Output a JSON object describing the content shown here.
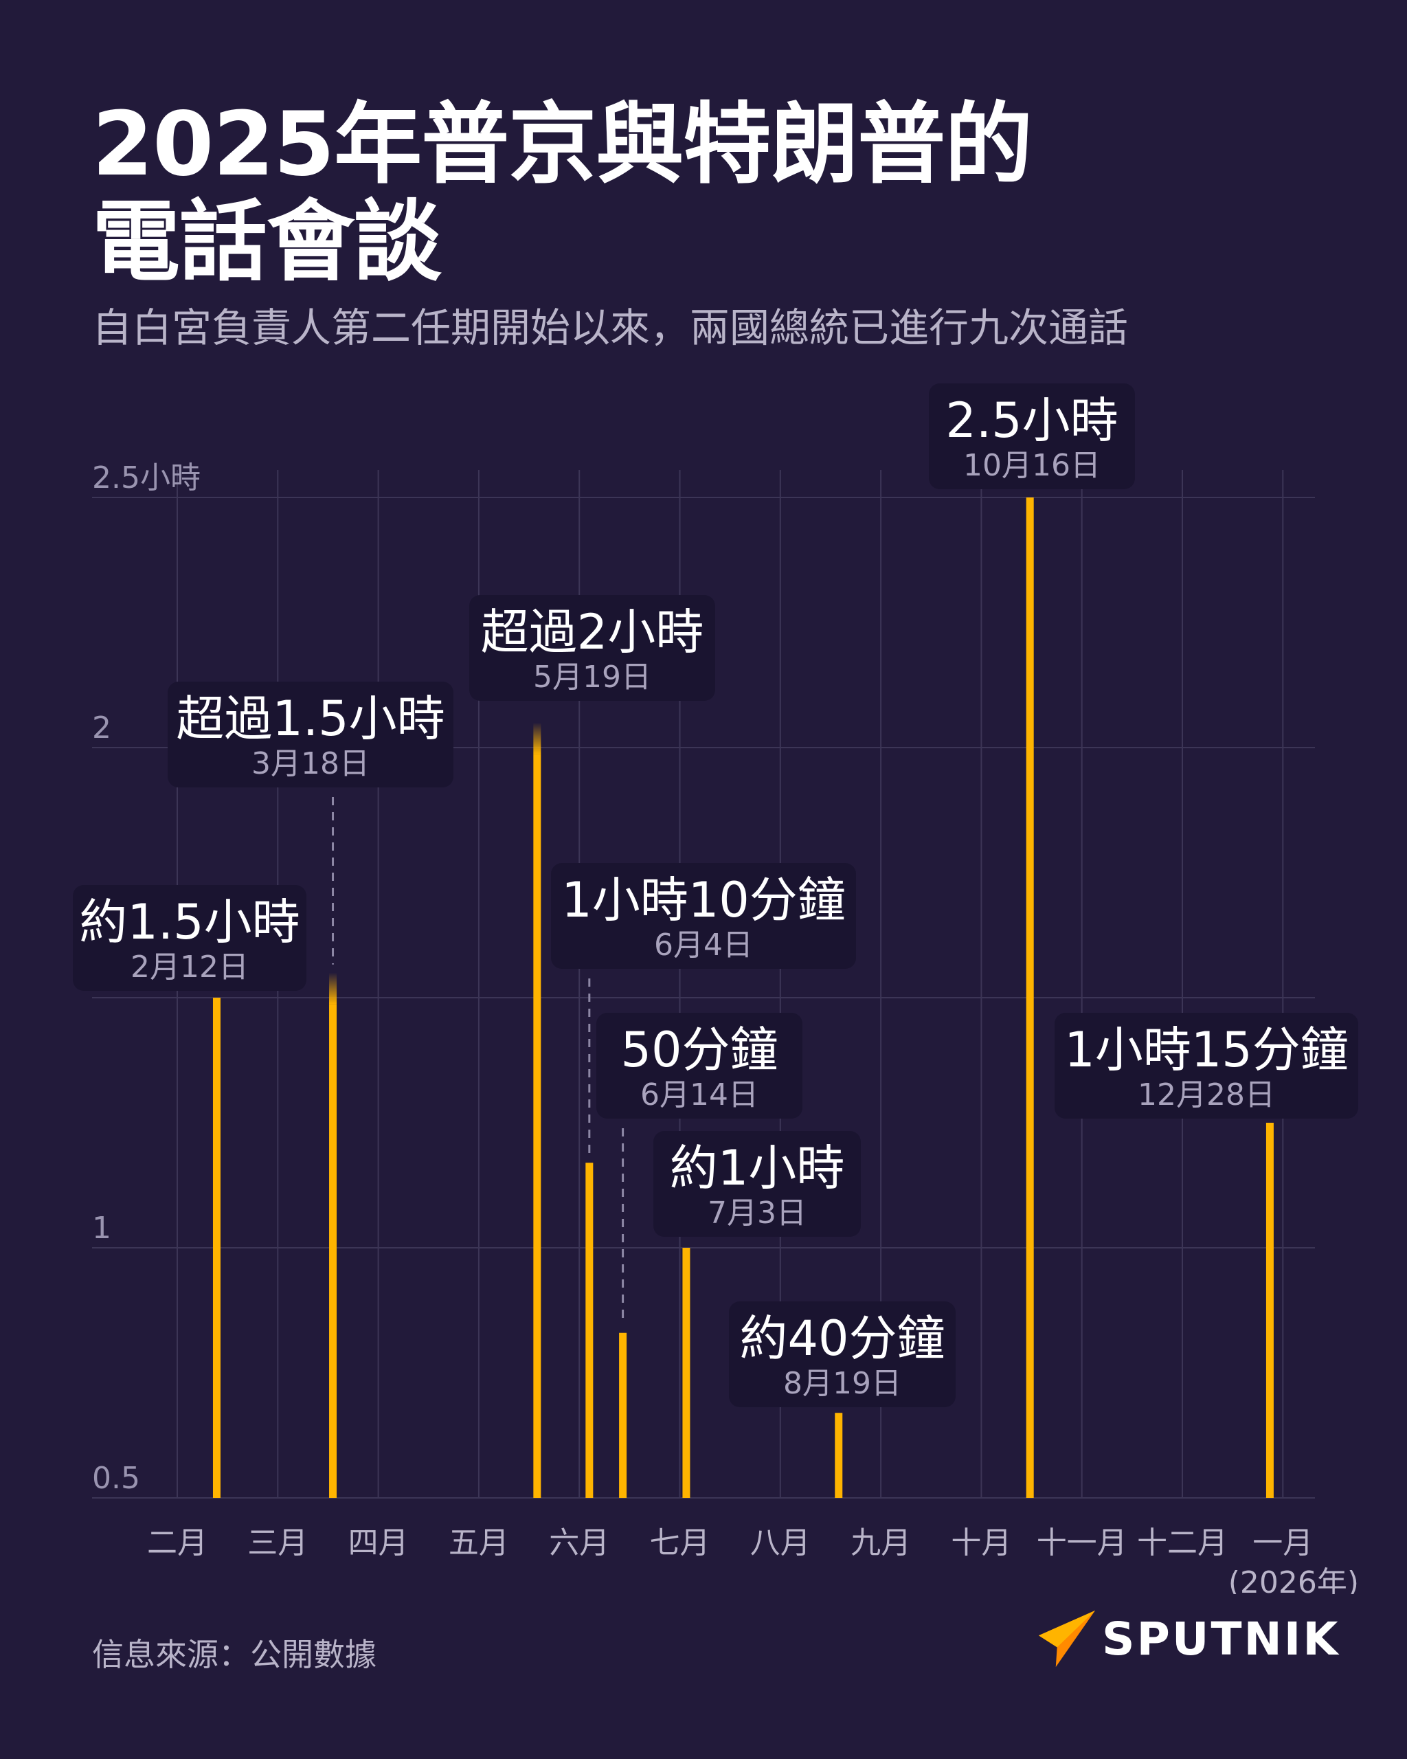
{
  "header": {
    "title_line1": "2025年普京與特朗普的",
    "title_line2": "電話會談",
    "subtitle": "自白宮負責人第二任期開始以來，兩國總統已進行九次通話"
  },
  "footer": {
    "source": "信息來源：公開數據",
    "brand": "SPUTNIK",
    "brand_icon": "sputnik-flame-logo"
  },
  "colors": {
    "background": "#221a3a",
    "bar": "#ffb400",
    "callout_bg": "#1a1430",
    "grid": "#3c3556"
  },
  "chart_data": {
    "type": "bar",
    "ylim": [
      0.5,
      2.5
    ],
    "yticks": [
      {
        "value": 2.5,
        "label": "2.5小時"
      },
      {
        "value": 2,
        "label": "2"
      },
      {
        "value": 1.5,
        "label": ""
      },
      {
        "value": 1,
        "label": "1"
      },
      {
        "value": 0.5,
        "label": "0.5"
      }
    ],
    "x_ticks": [
      "二月",
      "三月",
      "四月",
      "五月",
      "六月",
      "七月",
      "八月",
      "九月",
      "十月",
      "十一月",
      "十二月",
      "一月"
    ],
    "x_note": "(2026年)",
    "calls": [
      {
        "date": "2月12日",
        "month": 2,
        "day": 12,
        "hours": 1.5,
        "label": "約1.5小時"
      },
      {
        "date": "3月18日",
        "month": 3,
        "day": 18,
        "hours": 1.55,
        "label": "超過1.5小時"
      },
      {
        "date": "5月19日",
        "month": 5,
        "day": 19,
        "hours": 2.05,
        "label": "超過2小時"
      },
      {
        "date": "6月4日",
        "month": 6,
        "day": 4,
        "hours": 1.17,
        "label": "1小時10分鐘"
      },
      {
        "date": "6月14日",
        "month": 6,
        "day": 14,
        "hours": 0.83,
        "label": "50分鐘"
      },
      {
        "date": "7月3日",
        "month": 7,
        "day": 3,
        "hours": 1,
        "label": "約1小時"
      },
      {
        "date": "8月19日",
        "month": 8,
        "day": 19,
        "hours": 0.67,
        "label": "約40分鐘"
      },
      {
        "date": "10月16日",
        "month": 10,
        "day": 16,
        "hours": 2.5,
        "label": "2.5小時"
      },
      {
        "date": "12月28日",
        "month": 12,
        "day": 28,
        "hours": 1.25,
        "label": "1小時15分鐘"
      }
    ]
  }
}
